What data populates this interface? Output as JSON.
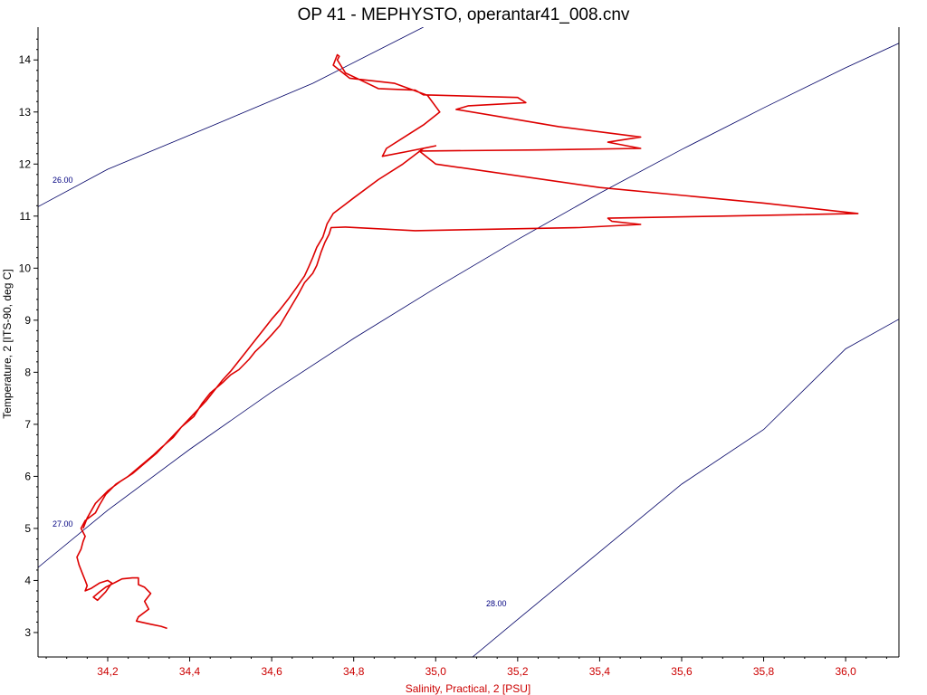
{
  "chart_data": {
    "type": "line",
    "title": "OP 41 - MEPHYSTO, operantar41_008.cnv",
    "xlabel": "Salinity, Practical, 2 [PSU]",
    "ylabel": "Temperature, 2 [ITS-90, deg C]",
    "xlim": [
      34.03,
      36.13
    ],
    "ylim": [
      2.53,
      14.63
    ],
    "x_ticks": [
      34.2,
      34.4,
      34.6,
      34.8,
      35.0,
      35.2,
      35.4,
      35.6,
      35.8,
      36.0
    ],
    "x_tick_labels": [
      "34,2",
      "34,4",
      "34,6",
      "34,8",
      "35,0",
      "35,2",
      "35,4",
      "35,6",
      "35,8",
      "36,0"
    ],
    "y_ticks": [
      3,
      4,
      5,
      6,
      7,
      8,
      9,
      10,
      11,
      12,
      13,
      14
    ],
    "y_tick_labels": [
      "3",
      "4",
      "5",
      "6",
      "7",
      "8",
      "9",
      "10",
      "11",
      "12",
      "13",
      "14"
    ],
    "grid": false,
    "colors": {
      "profile": "#dd0000",
      "isopycnal": "#000066",
      "isopycnal_label": "#000080",
      "x_axis_text": "#cc0000",
      "axis": "#000000"
    },
    "series": [
      {
        "values": [
          [
            34.345,
            3.08
          ],
          [
            34.33,
            3.12
          ],
          [
            34.305,
            3.16
          ],
          [
            34.27,
            3.22
          ],
          [
            34.275,
            3.3
          ],
          [
            34.3,
            3.45
          ],
          [
            34.29,
            3.6
          ],
          [
            34.305,
            3.75
          ],
          [
            34.29,
            3.87
          ],
          [
            34.275,
            3.92
          ],
          [
            34.275,
            4.05
          ],
          [
            34.26,
            4.05
          ],
          [
            34.235,
            4.03
          ],
          [
            34.215,
            3.95
          ],
          [
            34.195,
            3.87
          ],
          [
            34.18,
            3.78
          ],
          [
            34.165,
            3.68
          ],
          [
            34.175,
            3.62
          ],
          [
            34.195,
            3.78
          ],
          [
            34.21,
            3.95
          ],
          [
            34.2,
            4.0
          ],
          [
            34.18,
            3.95
          ],
          [
            34.16,
            3.85
          ],
          [
            34.145,
            3.8
          ],
          [
            34.15,
            3.9
          ],
          [
            34.145,
            4.0
          ],
          [
            34.14,
            4.1
          ],
          [
            34.13,
            4.3
          ],
          [
            34.125,
            4.45
          ],
          [
            34.135,
            4.6
          ],
          [
            34.14,
            4.75
          ],
          [
            34.145,
            4.85
          ],
          [
            34.135,
            5.0
          ],
          [
            34.145,
            5.15
          ],
          [
            34.17,
            5.3
          ],
          [
            34.18,
            5.45
          ],
          [
            34.195,
            5.65
          ],
          [
            34.22,
            5.85
          ],
          [
            34.25,
            6.0
          ],
          [
            34.28,
            6.2
          ],
          [
            34.31,
            6.4
          ],
          [
            34.33,
            6.55
          ],
          [
            34.36,
            6.75
          ],
          [
            34.38,
            6.95
          ],
          [
            34.41,
            7.15
          ],
          [
            34.43,
            7.4
          ],
          [
            34.45,
            7.6
          ],
          [
            34.48,
            7.8
          ],
          [
            34.5,
            7.95
          ],
          [
            34.52,
            8.05
          ],
          [
            34.545,
            8.25
          ],
          [
            34.56,
            8.4
          ],
          [
            34.58,
            8.55
          ],
          [
            34.6,
            8.72
          ],
          [
            34.62,
            8.9
          ],
          [
            34.635,
            9.1
          ],
          [
            34.65,
            9.3
          ],
          [
            34.665,
            9.5
          ],
          [
            34.68,
            9.72
          ],
          [
            34.7,
            9.9
          ],
          [
            34.71,
            10.05
          ],
          [
            34.72,
            10.3
          ],
          [
            34.73,
            10.5
          ],
          [
            34.74,
            10.65
          ],
          [
            34.745,
            10.78
          ],
          [
            34.78,
            10.79
          ],
          [
            34.95,
            10.72
          ],
          [
            35.15,
            10.75
          ],
          [
            35.35,
            10.78
          ],
          [
            35.5,
            10.84
          ],
          [
            35.43,
            10.9
          ],
          [
            35.42,
            10.96
          ],
          [
            35.7,
            11.0
          ],
          [
            36.03,
            11.05
          ],
          [
            35.8,
            11.25
          ],
          [
            35.4,
            11.55
          ],
          [
            35.0,
            12.0
          ],
          [
            34.96,
            12.25
          ],
          [
            35.25,
            12.27
          ],
          [
            35.5,
            12.3
          ],
          [
            35.42,
            12.42
          ],
          [
            35.5,
            12.52
          ],
          [
            35.3,
            12.72
          ],
          [
            35.15,
            12.92
          ],
          [
            35.05,
            13.05
          ],
          [
            35.08,
            13.12
          ],
          [
            35.22,
            13.18
          ],
          [
            35.2,
            13.28
          ],
          [
            34.97,
            13.33
          ],
          [
            34.95,
            13.42
          ],
          [
            34.86,
            13.45
          ],
          [
            34.82,
            13.6
          ],
          [
            34.78,
            13.75
          ],
          [
            34.76,
            14.0
          ],
          [
            34.765,
            14.07
          ],
          [
            34.76,
            14.1
          ],
          [
            34.75,
            13.9
          ],
          [
            34.79,
            13.65
          ],
          [
            34.9,
            13.55
          ],
          [
            34.98,
            13.32
          ],
          [
            35.01,
            13.0
          ],
          [
            34.97,
            12.75
          ],
          [
            34.93,
            12.55
          ],
          [
            34.88,
            12.3
          ],
          [
            34.87,
            12.15
          ],
          [
            34.93,
            12.24
          ],
          [
            35.0,
            12.35
          ],
          [
            34.97,
            12.3
          ],
          [
            34.92,
            12.0
          ],
          [
            34.86,
            11.7
          ],
          [
            34.8,
            11.35
          ],
          [
            34.75,
            11.05
          ],
          [
            34.735,
            10.85
          ],
          [
            34.725,
            10.6
          ],
          [
            34.71,
            10.4
          ],
          [
            34.7,
            10.2
          ],
          [
            34.69,
            10.02
          ],
          [
            34.68,
            9.85
          ],
          [
            34.66,
            9.62
          ],
          [
            34.64,
            9.4
          ],
          [
            34.62,
            9.2
          ],
          [
            34.6,
            9.02
          ],
          [
            34.58,
            8.82
          ],
          [
            34.56,
            8.62
          ],
          [
            34.54,
            8.42
          ],
          [
            34.52,
            8.22
          ],
          [
            34.5,
            8.02
          ],
          [
            34.48,
            7.85
          ],
          [
            34.46,
            7.65
          ],
          [
            34.44,
            7.45
          ],
          [
            34.41,
            7.2
          ],
          [
            34.38,
            6.95
          ],
          [
            34.35,
            6.7
          ],
          [
            34.32,
            6.45
          ],
          [
            34.29,
            6.25
          ],
          [
            34.26,
            6.05
          ],
          [
            34.23,
            5.9
          ],
          [
            34.2,
            5.72
          ],
          [
            34.17,
            5.48
          ],
          [
            34.15,
            5.2
          ],
          [
            34.14,
            5.0
          ]
        ]
      }
    ],
    "isopycnals": [
      {
        "label": "26.00",
        "points": [
          [
            34.03,
            11.18
          ],
          [
            34.2,
            11.9
          ],
          [
            34.45,
            12.72
          ],
          [
            34.7,
            13.55
          ],
          [
            34.97,
            14.63
          ]
        ]
      },
      {
        "label": "27.00",
        "points": [
          [
            34.03,
            4.25
          ],
          [
            34.2,
            5.35
          ],
          [
            34.4,
            6.52
          ],
          [
            34.6,
            7.62
          ],
          [
            34.8,
            8.65
          ],
          [
            35.0,
            9.62
          ],
          [
            35.2,
            10.55
          ],
          [
            35.4,
            11.44
          ],
          [
            35.6,
            12.28
          ],
          [
            35.8,
            13.08
          ],
          [
            36.0,
            13.85
          ],
          [
            36.13,
            14.32
          ]
        ]
      },
      {
        "label": "28.00",
        "points": [
          [
            35.09,
            2.53
          ],
          [
            35.2,
            3.25
          ],
          [
            35.4,
            4.55
          ],
          [
            35.6,
            5.85
          ],
          [
            35.8,
            6.9
          ],
          [
            36.0,
            8.45
          ],
          [
            36.13,
            9.02
          ]
        ]
      }
    ]
  }
}
